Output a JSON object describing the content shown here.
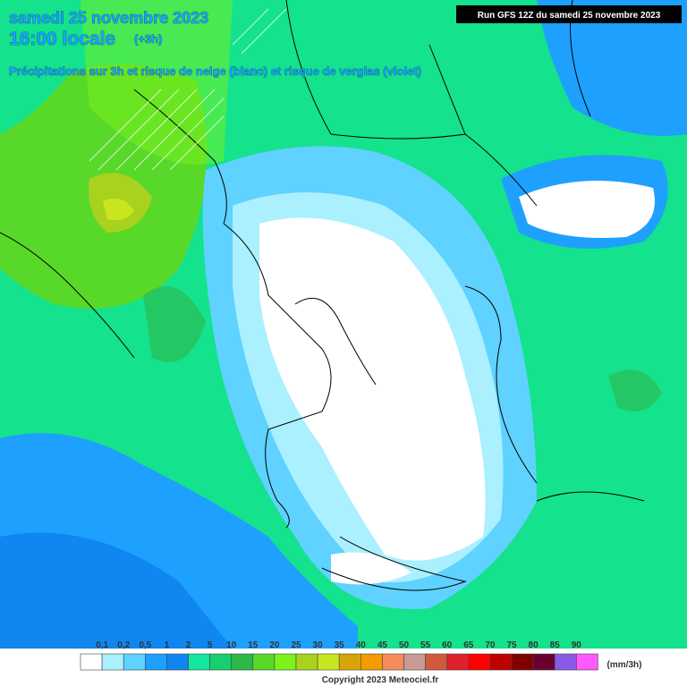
{
  "header": {
    "date": "samedi 25 novembre 2023",
    "time": "16:00 locale",
    "offset": "(+3h)",
    "subtitle": "Précipitations sur 3h et risque de neige (blanc) et risque de verglas (violet)",
    "run": "Run GFS 12Z du samedi 25 novembre 2023"
  },
  "legend": {
    "labels": [
      "0,1",
      "0,2",
      "0,5",
      "1",
      "2",
      "5",
      "10",
      "15",
      "20",
      "25",
      "30",
      "35",
      "40",
      "45",
      "50",
      "55",
      "60",
      "65",
      "70",
      "75",
      "80",
      "85",
      "90"
    ],
    "colors": [
      "#ffffff",
      "#aaf0ff",
      "#5fd2ff",
      "#1ea0ff",
      "#0f86f0",
      "#12e6a0",
      "#17cf6e",
      "#2db84a",
      "#58d92a",
      "#7cf21a",
      "#a8d21e",
      "#c8e61e",
      "#d6a608",
      "#f29c00",
      "#f58c5a",
      "#c89a96",
      "#d25a3c",
      "#e0202c",
      "#ff0000",
      "#c00000",
      "#800000",
      "#6a0030",
      "#8a5ae6",
      "#ff5aff"
    ],
    "unit": "(mm/3h)"
  },
  "footer": {
    "copyright": "Copyright 2023 Meteociel.fr"
  }
}
